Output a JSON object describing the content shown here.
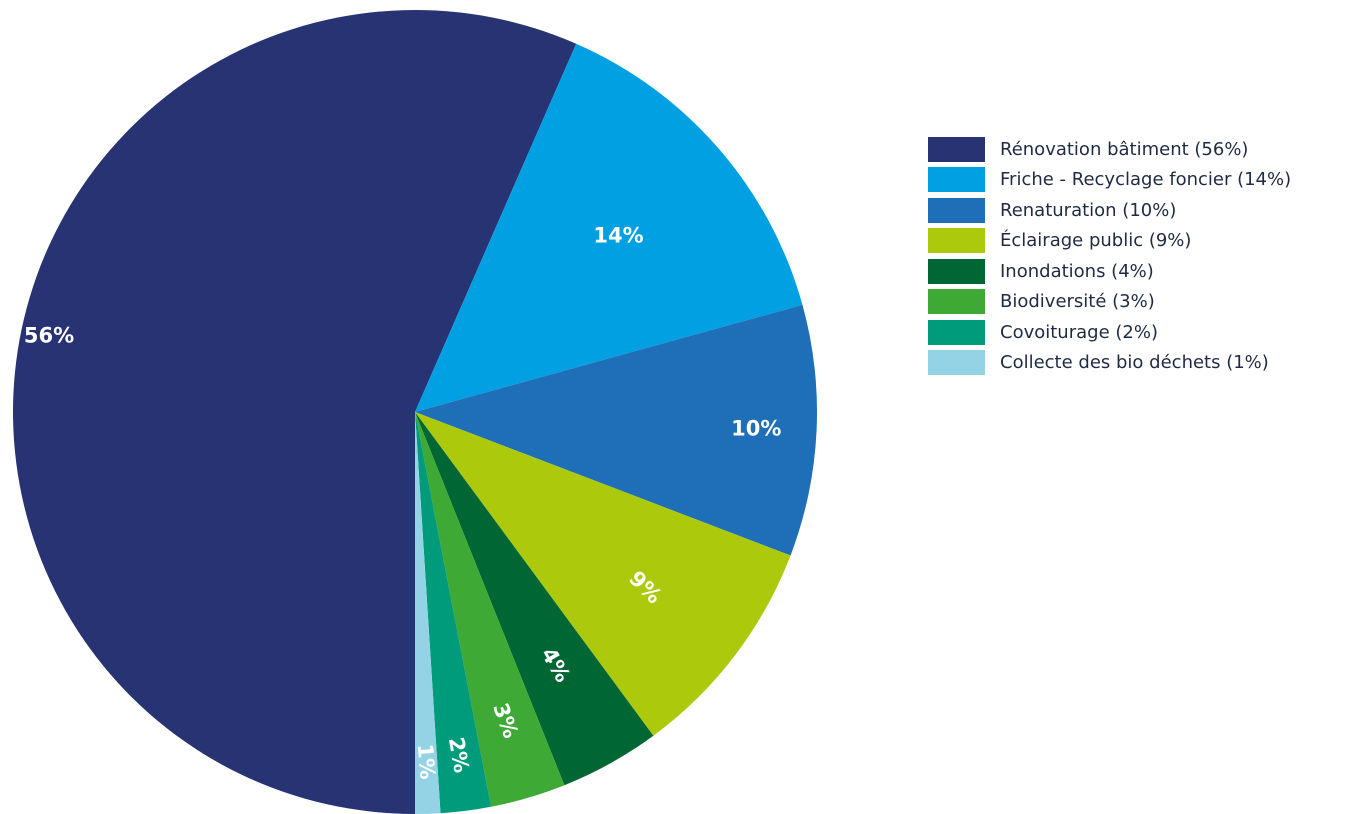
{
  "chart_data": {
    "type": "pie",
    "slices": [
      {
        "name": "Rénovation bâtiment",
        "value": 56,
        "label": "56%",
        "legend": "Rénovation bâtiment (56%)",
        "color": "#283374"
      },
      {
        "name": "Friche - Recyclage foncier",
        "value": 14,
        "label": "14%",
        "legend": "Friche - Recyclage foncier (14%)",
        "color": "#00a0e2"
      },
      {
        "name": "Renaturation",
        "value": 10,
        "label": "10%",
        "legend": "Renaturation (10%)",
        "color": "#1e6fb8"
      },
      {
        "name": "Éclairage public",
        "value": 9,
        "label": "9%",
        "legend": "Éclairage public (9%)",
        "color": "#adc90c"
      },
      {
        "name": "Inondations",
        "value": 4,
        "label": "4%",
        "legend": "Inondations (4%)",
        "color": "#006633"
      },
      {
        "name": "Biodiversité",
        "value": 3,
        "label": "3%",
        "legend": "Biodiversité (3%)",
        "color": "#3ea935"
      },
      {
        "name": "Covoiturage",
        "value": 2,
        "label": "2%",
        "legend": "Covoiturage (2%)",
        "color": "#009b7a"
      },
      {
        "name": "Collecte des bio déchets",
        "value": 1,
        "label": "1%",
        "legend": "Collecte des bio déchets (1%)",
        "color": "#94d3e5"
      }
    ],
    "legend_position": "right"
  }
}
